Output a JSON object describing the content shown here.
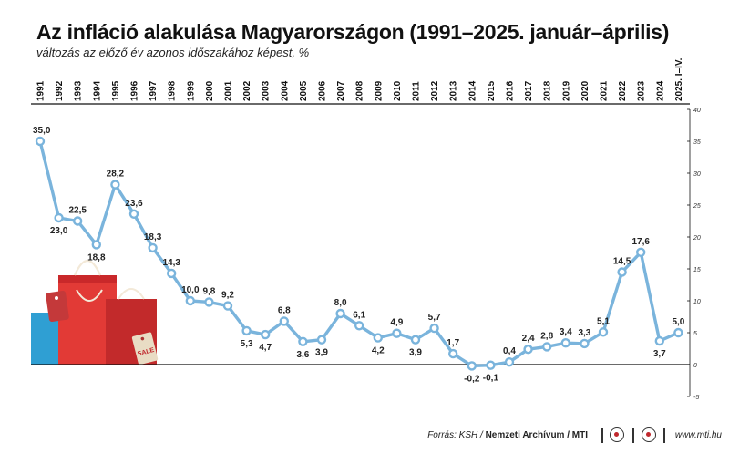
{
  "title": "Az infláció alakulása Magyarországon (1991–2025. január–április)",
  "subtitle": "változás az előző év azonos időszakához képest, %",
  "footer": {
    "source_prefix": "Forrás: KSH / ",
    "source_bold": "Nemzeti Archívum / MTI",
    "url": "www.mti.hu",
    "logo_icons": [
      "mti-logo-icon",
      "mti-logo-icon"
    ]
  },
  "illustration": {
    "sale_tag": "SALE",
    "icon": "shopping-bags-icon"
  },
  "chart_data": {
    "type": "line",
    "title": "Az infláció alakulása Magyarországon (1991–2025. január–április)",
    "subtitle": "változás az előző év azonos időszakához képest, %",
    "categories": [
      "1991",
      "1992",
      "1993",
      "1994",
      "1995",
      "1996",
      "1997",
      "1998",
      "1999",
      "2000",
      "2001",
      "2002",
      "2003",
      "2004",
      "2005",
      "2006",
      "2007",
      "2008",
      "2009",
      "2010",
      "2011",
      "2012",
      "2013",
      "2014",
      "2015",
      "2016",
      "2017",
      "2018",
      "2019",
      "2020",
      "2021",
      "2022",
      "2023",
      "2024",
      "2025. I–IV."
    ],
    "values": [
      35.0,
      23.0,
      22.5,
      18.8,
      28.2,
      23.6,
      18.3,
      14.3,
      10.0,
      9.8,
      9.2,
      5.3,
      4.7,
      6.8,
      3.6,
      3.9,
      8.0,
      6.1,
      4.2,
      4.9,
      3.9,
      5.7,
      1.7,
      -0.2,
      -0.1,
      0.4,
      2.4,
      2.8,
      3.4,
      3.3,
      5.1,
      14.5,
      17.6,
      3.7,
      5.0
    ],
    "labels": [
      "35,0",
      "23,0",
      "22,5",
      "18,8",
      "28,2",
      "23,6",
      "18,3",
      "14,3",
      "10,0",
      "9,8",
      "9,2",
      "5,3",
      "4,7",
      "6,8",
      "3,6",
      "3,9",
      "8,0",
      "6,1",
      "4,2",
      "4,9",
      "3,9",
      "5,7",
      "1,7",
      "-0,2",
      "-0,1",
      "0,4",
      "2,4",
      "2,8",
      "3,4",
      "3,3",
      "5,1",
      "14,5",
      "17,6",
      "3,7",
      "5,0"
    ],
    "label_side": [
      "above",
      "below",
      "above",
      "below",
      "above",
      "above",
      "above",
      "above",
      "above",
      "above",
      "above",
      "below",
      "below",
      "above",
      "below",
      "below",
      "above",
      "above",
      "below",
      "above",
      "below",
      "above",
      "above",
      "below",
      "below",
      "above",
      "above",
      "above",
      "above",
      "above",
      "above",
      "above",
      "above",
      "below",
      "above"
    ],
    "ylim": [
      -5,
      40
    ],
    "yticks": [
      -5,
      0,
      5,
      10,
      15,
      20,
      25,
      30,
      35,
      40
    ],
    "ytick_labels": [
      "-5",
      "0",
      "5",
      "10",
      "15",
      "20",
      "25",
      "30",
      "35",
      "40"
    ],
    "grid": false,
    "colors": {
      "line": "#7ab4dc",
      "marker_fill": "#ffffff",
      "axis": "#111111",
      "label": "#222222"
    }
  }
}
